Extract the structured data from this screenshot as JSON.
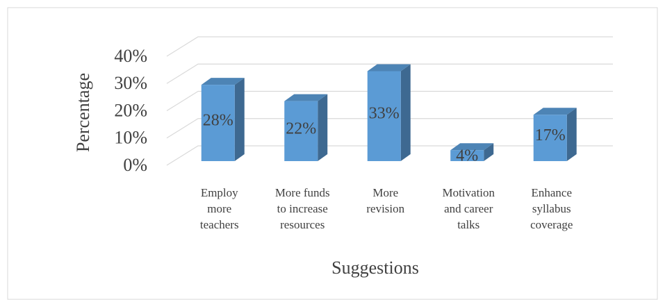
{
  "chart_data": {
    "type": "bar3d",
    "y_label": "Percentage",
    "x_label": "Suggestions",
    "categories": [
      "Employ\nmore\nteachers",
      "More funds\nto increase\nresources",
      "More\nrevision",
      "Motivation\nand career\ntalks",
      "Enhance\nsyllabus\ncoverage"
    ],
    "values": [
      28,
      22,
      33,
      4,
      17
    ],
    "value_labels": [
      "28%",
      "22%",
      "33%",
      "4%",
      "17%"
    ],
    "color": "#5b9bd5",
    "ylim": [
      0,
      40
    ],
    "yticks": [
      {
        "value": 0,
        "label": "0%"
      },
      {
        "value": 10,
        "label": "10%"
      },
      {
        "value": 20,
        "label": "20%"
      },
      {
        "value": 30,
        "label": "30%"
      },
      {
        "value": 40,
        "label": "40%"
      }
    ],
    "grid": true
  }
}
